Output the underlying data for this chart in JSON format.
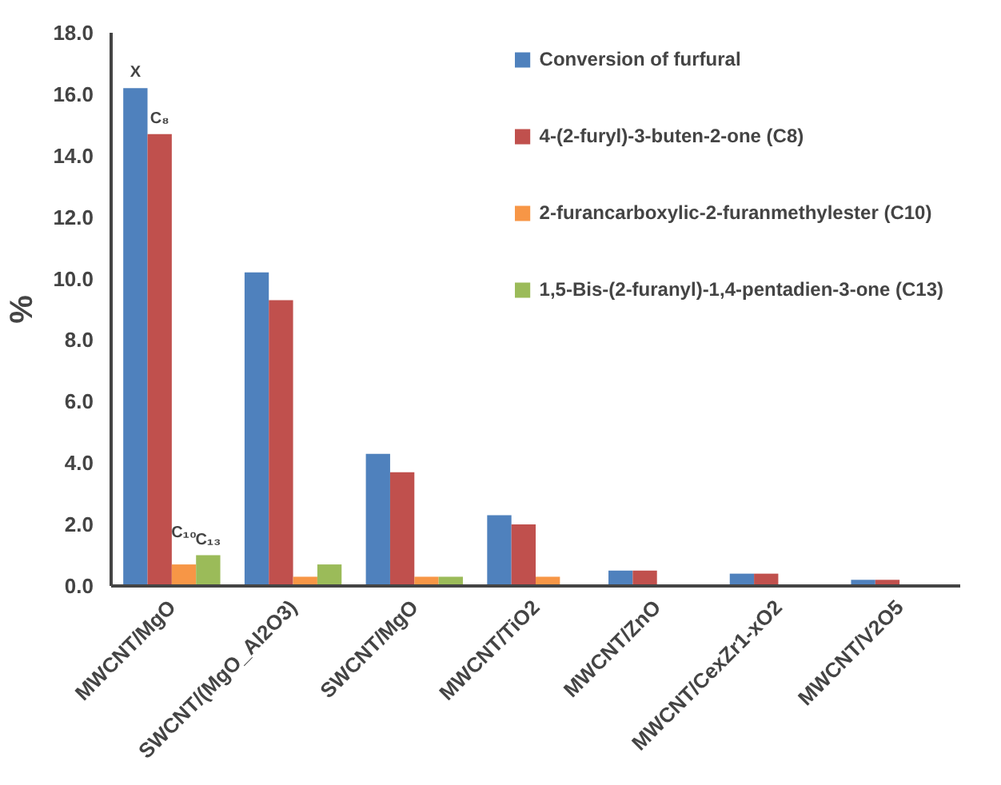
{
  "chart_data": {
    "type": "bar",
    "ylabel": "%",
    "categories": [
      "MWCNT/MgO",
      "SWCNT/(MgO_Al2O3)",
      "SWCNT/MgO",
      "MWCNT/TiO2",
      "MWCNT/ZnO",
      "MWCNT/CexZr1-xO2",
      "MWCNT/V2O5"
    ],
    "series": [
      {
        "name": "Conversion of furfural",
        "color": "#4f81bd",
        "values": [
          16.2,
          10.2,
          4.3,
          2.3,
          0.5,
          0.4,
          0.2
        ]
      },
      {
        "name": "4-(2-furyl)-3-buten-2-one (C8)",
        "color": "#c0504d",
        "values": [
          14.7,
          9.3,
          3.7,
          2.0,
          0.5,
          0.4,
          0.2
        ]
      },
      {
        "name": "2-furancarboxylic-2-furanmethylester (C10)",
        "color": "#f79646",
        "values": [
          0.7,
          0.3,
          0.3,
          0.3,
          0,
          0,
          0
        ]
      },
      {
        "name": "1,5-Bis-(2-furanyl)-1,4-pentadien-3-one (C13)",
        "color": "#9bbb59",
        "values": [
          1.0,
          0.7,
          0.3,
          0,
          0,
          0,
          0
        ]
      }
    ],
    "ylim": [
      0,
      18
    ],
    "yticks": [
      {
        "value": 0,
        "label": "0.0"
      },
      {
        "value": 2,
        "label": "2.0"
      },
      {
        "value": 4,
        "label": "4.0"
      },
      {
        "value": 6,
        "label": "6.0"
      },
      {
        "value": 8,
        "label": "8.0"
      },
      {
        "value": 10,
        "label": "10.0"
      },
      {
        "value": 12,
        "label": "12.0"
      },
      {
        "value": 14,
        "label": "14.0"
      },
      {
        "value": 16,
        "label": "16.0"
      },
      {
        "value": 18,
        "label": "18.0"
      }
    ],
    "annotations": [
      "X",
      "C₈",
      "C₁₀",
      "C₁₃"
    ],
    "grid": false,
    "legend": "top right"
  }
}
